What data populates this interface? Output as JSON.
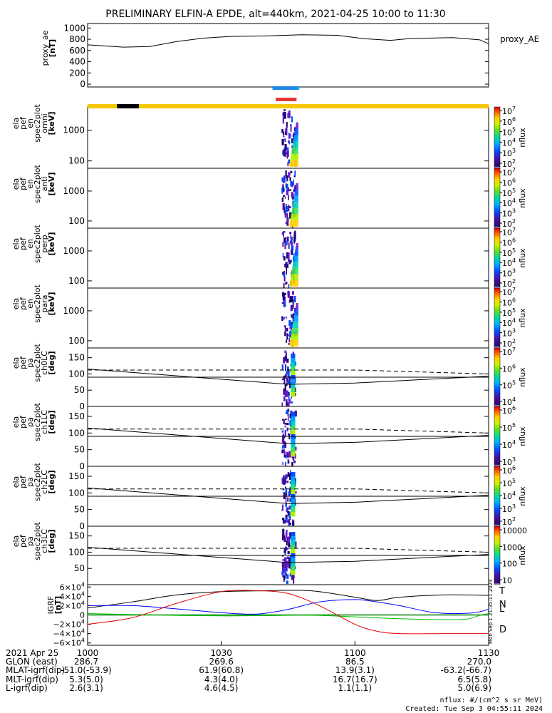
{
  "title": "PRELIMINARY ELFIN-A EPDE, alt=440km, 2021-04-25 10:00 to 11:30",
  "chart_data": [
    {
      "id": "proxy_ae",
      "type": "line",
      "ylabel": [
        "proxy_ae",
        "[nT]"
      ],
      "legend": "proxy_AE",
      "ylim": [
        -50,
        1080
      ],
      "yticks": [
        1000,
        800,
        600,
        400,
        200,
        0
      ],
      "x": [
        0,
        8,
        14,
        20,
        26,
        32,
        40,
        48,
        56,
        62,
        68,
        72,
        76,
        82,
        88,
        90
      ],
      "y": [
        700,
        660,
        670,
        760,
        820,
        850,
        860,
        880,
        870,
        810,
        780,
        810,
        820,
        830,
        790,
        720
      ]
    },
    {
      "id": "omni",
      "type": "heatmap",
      "ylabel": [
        "ela",
        "pef",
        "en",
        "spec2plot",
        "omni",
        "[keV]"
      ],
      "ylog": true,
      "yticks": [
        "1000",
        "100"
      ],
      "colorbar": {
        "label": "nflux",
        "ticks": [
          "10^7",
          "10^6",
          "10^5",
          "10^4",
          "10^3",
          "10^2"
        ]
      }
    },
    {
      "id": "anti",
      "type": "heatmap",
      "ylabel": [
        "ela",
        "pef",
        "en",
        "spec2plot",
        "anti",
        "[keV]"
      ],
      "ylog": true,
      "yticks": [
        "1000",
        "100"
      ],
      "colorbar": {
        "label": "nflux",
        "ticks": [
          "10^7",
          "10^6",
          "10^5",
          "10^4",
          "10^3",
          "10^2"
        ]
      }
    },
    {
      "id": "perp",
      "type": "heatmap",
      "ylabel": [
        "ela",
        "pef",
        "en",
        "spec2plot",
        "perp",
        "[keV]"
      ],
      "ylog": true,
      "yticks": [
        "1000",
        "100"
      ],
      "colorbar": {
        "label": "nflux",
        "ticks": [
          "10^7",
          "10^6",
          "10^5",
          "10^4",
          "10^3",
          "10^2"
        ]
      }
    },
    {
      "id": "para",
      "type": "heatmap",
      "ylabel": [
        "ela",
        "pef",
        "en",
        "spec2plot",
        "para",
        "[keV]"
      ],
      "ylog": true,
      "yticks": [
        "1000",
        "100"
      ],
      "colorbar": {
        "label": "nflux",
        "ticks": [
          "10^7",
          "10^6",
          "10^5",
          "10^4",
          "10^3",
          "10^2"
        ]
      }
    },
    {
      "id": "ch0LC",
      "type": "heatmap",
      "ylabel": [
        "ela",
        "pef",
        "pa",
        "spec2plot",
        "ch0LC",
        "[deg]"
      ],
      "ylim": [
        0,
        180
      ],
      "yticks": [
        "150",
        "100",
        "50",
        "0"
      ],
      "colorbar": {
        "label": "nflux",
        "ticks": [
          "10^7",
          "10^6",
          "10^5",
          "10^4"
        ]
      }
    },
    {
      "id": "ch1LC",
      "type": "heatmap",
      "ylabel": [
        "ela",
        "pef",
        "pa",
        "spec2plot",
        "ch1LC",
        "[deg]"
      ],
      "ylim": [
        0,
        180
      ],
      "yticks": [
        "150",
        "100",
        "50",
        "0"
      ],
      "colorbar": {
        "label": "nflux",
        "ticks": [
          "10^6",
          "10^5",
          "10^4",
          "10^3"
        ]
      }
    },
    {
      "id": "ch2LC",
      "type": "heatmap",
      "ylabel": [
        "ela",
        "pef",
        "pa",
        "spec2plot",
        "ch2LC",
        "[deg]"
      ],
      "ylim": [
        0,
        180
      ],
      "yticks": [
        "150",
        "100",
        "50",
        "0"
      ],
      "colorbar": {
        "label": "nflux",
        "ticks": [
          "10^6",
          "10^5",
          "10^4",
          "10^3",
          "10^2"
        ]
      }
    },
    {
      "id": "ch3LC",
      "type": "heatmap",
      "ylabel": [
        "ela",
        "pef",
        "pa",
        "spec2plot",
        "ch3LC",
        "[deg]"
      ],
      "ylim": [
        0,
        180
      ],
      "yticks": [
        "150",
        "100",
        "50"
      ],
      "colorbar": {
        "label": "nflux",
        "ticks": [
          "10000",
          "1000",
          "100",
          "10"
        ]
      }
    },
    {
      "id": "igrf",
      "type": "line",
      "ylabel": [
        "IGRF",
        "[nT]"
      ],
      "ylim": [
        -65000,
        65000
      ],
      "yticks": [
        "6×10^4",
        "4×10^4",
        "2×10^4",
        "0",
        "−2×10^4",
        "−4×10^4",
        "−6×10^4"
      ],
      "series": [
        {
          "name": "T",
          "color": "#000000",
          "x": [
            0,
            10,
            20,
            30,
            40,
            50,
            60,
            65,
            70,
            80,
            90
          ],
          "y": [
            15000,
            28000,
            43000,
            50000,
            52000,
            52000,
            38000,
            31000,
            38000,
            43000,
            42000
          ]
        },
        {
          "name": "N",
          "color": "#0000ff",
          "x": [
            0,
            10,
            20,
            30,
            38,
            45,
            52,
            60,
            65,
            70,
            78,
            86,
            90
          ],
          "y": [
            20000,
            20000,
            13000,
            5000,
            2000,
            12000,
            28000,
            33000,
            28000,
            20000,
            5000,
            4000,
            12000
          ]
        },
        {
          "name": "L",
          "color": "#00c000",
          "x": [
            0,
            10,
            20,
            30,
            40,
            50,
            60,
            70,
            80,
            85,
            88,
            90
          ],
          "y": [
            3000,
            1000,
            -1000,
            -2000,
            -1500,
            -500,
            -4000,
            -8000,
            -10000,
            -9000,
            -1000,
            3000
          ]
        },
        {
          "name": "D",
          "color": "#e00000",
          "x": [
            0,
            10,
            20,
            30,
            38,
            45,
            52,
            60,
            65,
            70,
            80,
            90
          ],
          "y": [
            -20000,
            -6000,
            25000,
            50000,
            52000,
            46000,
            20000,
            -20000,
            -35000,
            -40000,
            -40000,
            -40000
          ]
        }
      ],
      "zero_line": {
        "color": "#008000"
      },
      "side_stamp": "Mon Sep 1 21:35:11 2024"
    }
  ],
  "bars": {
    "blue_color": "#1e88e5",
    "red_color": "#e53935",
    "gold_color": "#f5c800",
    "black_color": "#000000"
  },
  "xaxis": {
    "ticks": [
      "1000",
      "1030",
      "1100",
      "1130"
    ],
    "rows": [
      {
        "label": "2021 Apr 25",
        "values": [
          "1000",
          "1030",
          "1100",
          "1130"
        ]
      },
      {
        "label": "GLON (east)",
        "values": [
          "286.7",
          "269.6",
          "86.5",
          "270.0"
        ]
      },
      {
        "label": "MLAT-igrf(dip)",
        "values": [
          "-51.0(-53.9)",
          "61.9(60.8)",
          "13.9(3.1)",
          "-63.2(-66.7)"
        ]
      },
      {
        "label": "MLT-igrf(dip)",
        "values": [
          "5.3(5.0)",
          "4.3(4.0)",
          "16.7(16.7)",
          "6.5(5.8)"
        ]
      },
      {
        "label": "L-igrf(dip)",
        "values": [
          "2.6(3.1)",
          "4.6(4.5)",
          "1.1(1.1)",
          "5.0(6.9)"
        ]
      }
    ]
  },
  "footer": {
    "units": "nflux: #/(cm^2 s sr MeV)",
    "created": "Created: Tue Sep  3 04:55:11 2024"
  }
}
